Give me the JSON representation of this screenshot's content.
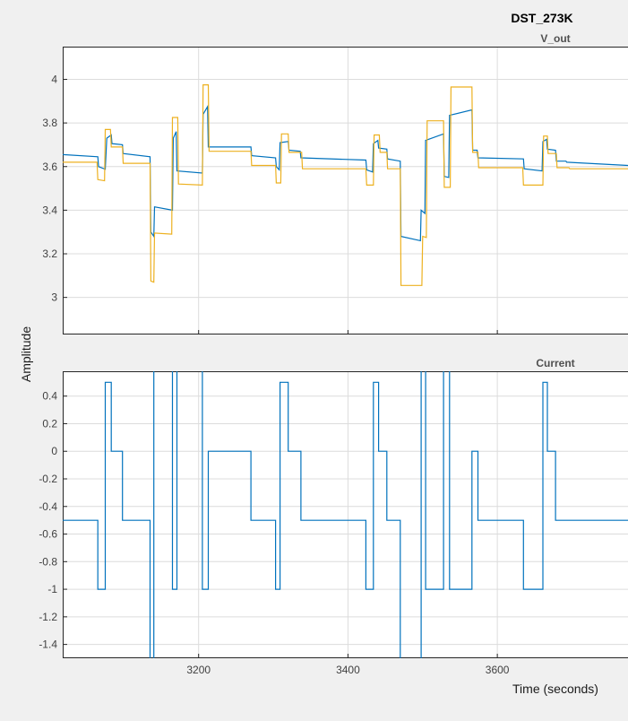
{
  "figure_title": "DST_273K",
  "ylabel": "Amplitude",
  "xlabel": "Time (seconds)",
  "colors": {
    "blue": "#0072BD",
    "yellow": "#EDB120",
    "grid": "#dcdcdc",
    "axis_bg": "#ffffff",
    "fig_bg": "#f0f0f0"
  },
  "chart_data": [
    {
      "type": "line",
      "title": "V_out",
      "xlim": [
        3018,
        3775
      ],
      "ylim": [
        2.83,
        4.15
      ],
      "yticks": [
        3,
        3.2,
        3.4,
        3.6,
        3.8,
        4
      ],
      "ytick_labels": [
        "3",
        "3.2",
        "3.4",
        "3.6",
        "3.8",
        "4"
      ],
      "xticks": [
        3200,
        3400,
        3600
      ],
      "grid": true,
      "series": [
        {
          "color": "#0072BD",
          "x": [
            3018,
            3065,
            3066,
            3075,
            3077,
            3083,
            3084,
            3098,
            3099,
            3135,
            3136,
            3140,
            3141,
            3165,
            3166,
            3170,
            3171,
            3205,
            3206,
            3212,
            3213,
            3270,
            3271,
            3303,
            3304,
            3308,
            3309,
            3320,
            3321,
            3336,
            3337,
            3424,
            3425,
            3433,
            3434,
            3440,
            3441,
            3452,
            3453,
            3470,
            3471,
            3497,
            3498,
            3503,
            3504,
            3528,
            3529,
            3535,
            3536,
            3566,
            3567,
            3573,
            3574,
            3635,
            3636,
            3660,
            3661,
            3666,
            3667,
            3678,
            3679,
            3692,
            3693,
            3775
          ],
          "y": [
            3.655,
            3.645,
            3.6,
            3.588,
            3.73,
            3.745,
            3.705,
            3.7,
            3.66,
            3.645,
            3.3,
            3.28,
            3.415,
            3.4,
            3.73,
            3.76,
            3.58,
            3.57,
            3.84,
            3.875,
            3.69,
            3.69,
            3.65,
            3.64,
            3.6,
            3.585,
            3.71,
            3.715,
            3.675,
            3.67,
            3.64,
            3.63,
            3.585,
            3.575,
            3.705,
            3.72,
            3.685,
            3.68,
            3.635,
            3.625,
            3.28,
            3.26,
            3.4,
            3.385,
            3.72,
            3.75,
            3.555,
            3.55,
            3.835,
            3.86,
            3.675,
            3.675,
            3.64,
            3.635,
            3.59,
            3.58,
            3.715,
            3.725,
            3.68,
            3.675,
            3.625,
            3.625,
            3.62,
            3.605
          ]
        },
        {
          "color": "#EDB120",
          "x": [
            3018,
            3064,
            3065,
            3074,
            3075,
            3082,
            3083,
            3098,
            3099,
            3135,
            3136,
            3140,
            3141,
            3164,
            3165,
            3172,
            3173,
            3205,
            3206,
            3213,
            3214,
            3270,
            3271,
            3303,
            3304,
            3310,
            3311,
            3320,
            3321,
            3338,
            3339,
            3424,
            3425,
            3434,
            3435,
            3442,
            3443,
            3452,
            3453,
            3470,
            3471,
            3499,
            3500,
            3505,
            3506,
            3528,
            3529,
            3537,
            3538,
            3566,
            3567,
            3574,
            3575,
            3634,
            3635,
            3661,
            3662,
            3667,
            3668,
            3679,
            3680,
            3696,
            3697,
            3775
          ],
          "y": [
            3.62,
            3.62,
            3.54,
            3.535,
            3.77,
            3.77,
            3.69,
            3.69,
            3.615,
            3.615,
            3.075,
            3.07,
            3.295,
            3.29,
            3.825,
            3.825,
            3.52,
            3.515,
            3.975,
            3.975,
            3.67,
            3.67,
            3.605,
            3.605,
            3.525,
            3.525,
            3.75,
            3.75,
            3.665,
            3.665,
            3.59,
            3.59,
            3.515,
            3.515,
            3.745,
            3.745,
            3.665,
            3.665,
            3.59,
            3.59,
            3.055,
            3.055,
            3.28,
            3.275,
            3.81,
            3.81,
            3.505,
            3.505,
            3.965,
            3.965,
            3.665,
            3.665,
            3.595,
            3.595,
            3.515,
            3.515,
            3.74,
            3.74,
            3.66,
            3.66,
            3.595,
            3.595,
            3.59,
            3.59
          ]
        }
      ]
    },
    {
      "type": "line",
      "title": "Current",
      "xlim": [
        3018,
        3775
      ],
      "ylim": [
        -1.5,
        0.58
      ],
      "yticks": [
        0.4,
        0.2,
        0,
        -0.2,
        -0.4,
        -0.6,
        -0.8,
        -1,
        -1.2,
        -1.4
      ],
      "ytick_labels": [
        "0.4",
        "0.2",
        "0",
        "-0.2",
        "-0.4",
        "-0.6",
        "-0.8",
        "-1",
        "-1.2",
        "-1.4"
      ],
      "xticks": [
        3200,
        3400,
        3600
      ],
      "xtick_labels": [
        "3200",
        "3400",
        "3600"
      ],
      "grid": true,
      "series": [
        {
          "color": "#0072BD",
          "x": [
            3018,
            3065,
            3065,
            3075,
            3075,
            3083,
            3083,
            3098,
            3098,
            3135,
            3135,
            3140,
            3140,
            3165,
            3165,
            3171,
            3171,
            3205,
            3205,
            3213,
            3213,
            3270,
            3270,
            3303,
            3303,
            3309,
            3309,
            3320,
            3320,
            3337,
            3337,
            3424,
            3424,
            3434,
            3434,
            3441,
            3441,
            3452,
            3452,
            3470,
            3470,
            3498,
            3498,
            3504,
            3504,
            3528,
            3528,
            3536,
            3536,
            3566,
            3566,
            3574,
            3574,
            3635,
            3635,
            3661,
            3661,
            3667,
            3667,
            3678,
            3678,
            3693,
            3693,
            3775
          ],
          "y": [
            -0.5,
            -0.5,
            -1,
            -1,
            0.5,
            0.5,
            0,
            0,
            -0.5,
            -0.5,
            -1.6,
            -1.6,
            0.7,
            0.7,
            -1,
            -1,
            0.7,
            0.7,
            -1,
            -1,
            0,
            0,
            -0.5,
            -0.5,
            -1,
            -1,
            0.5,
            0.5,
            0,
            0,
            -0.5,
            -0.5,
            -1,
            -1,
            0.5,
            0.5,
            0,
            0,
            -0.5,
            -0.5,
            -1.6,
            -1.6,
            0.7,
            0.7,
            -1,
            -1,
            0.7,
            0.7,
            -1,
            -1,
            0,
            0,
            -0.5,
            -0.5,
            -1,
            -1,
            0.5,
            0.5,
            0,
            0,
            -0.5,
            -0.5,
            -0.5,
            -0.5
          ]
        }
      ]
    }
  ]
}
